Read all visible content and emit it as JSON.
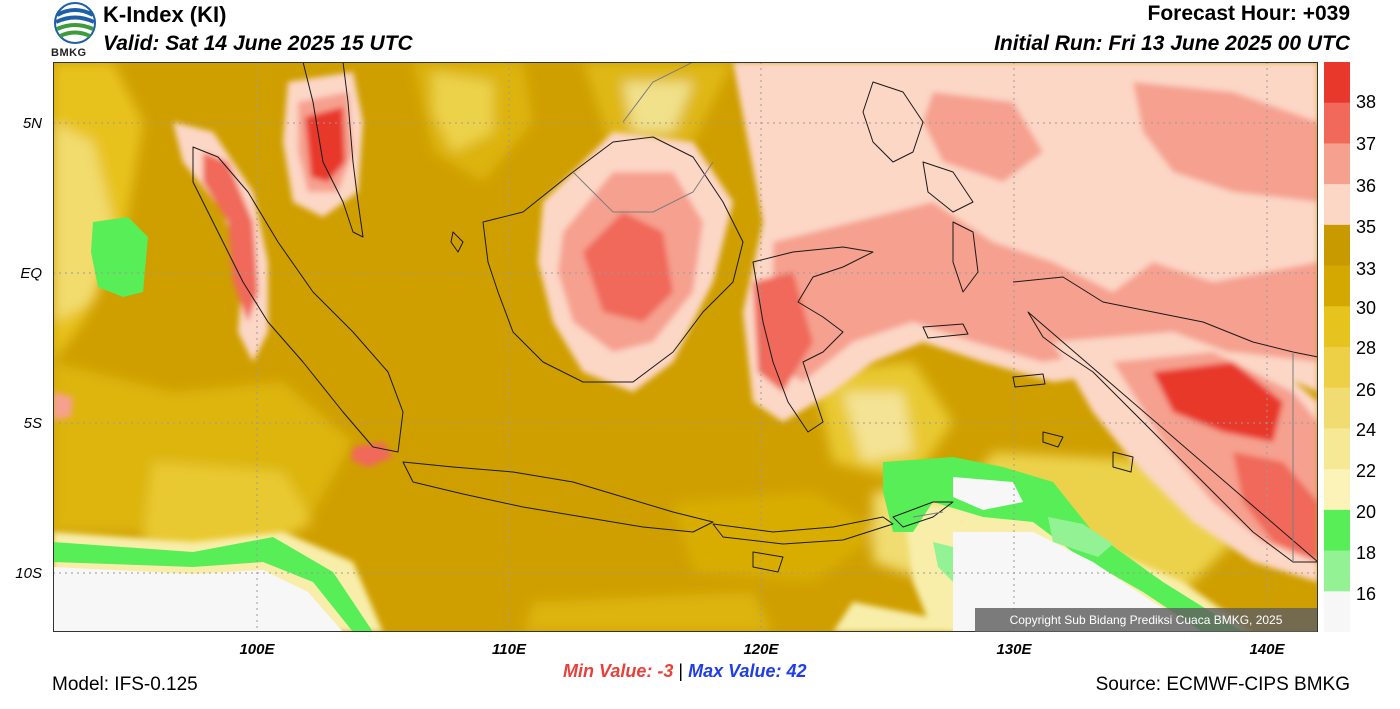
{
  "header": {
    "title": "K-Index (KI)",
    "valid": "Valid: Sat 14 June 2025 15 UTC",
    "forecast_hour": "Forecast Hour: +039",
    "initial_run": "Initial Run: Fri 13 June 2025 00 UTC",
    "logo_text": "BMKG"
  },
  "map": {
    "lat_labels": [
      "5N",
      "EQ",
      "5S",
      "10S"
    ],
    "lon_labels": [
      "100E",
      "110E",
      "120E",
      "130E",
      "140E"
    ],
    "copyright": "Copyright Sub Bidang Prediksi Cuaca BMKG, 2025"
  },
  "colorbar": {
    "labels": [
      "38",
      "37",
      "36",
      "35",
      "33",
      "30",
      "28",
      "26",
      "24",
      "22",
      "20",
      "18",
      "16"
    ],
    "colors": [
      "#e8382b",
      "#f0695a",
      "#f6a08f",
      "#fcd7c6",
      "#c99a00",
      "#d5a800",
      "#e6c31d",
      "#edd045",
      "#f0dc70",
      "#f6e996",
      "#fbf3b8",
      "#58ee58",
      "#93f293",
      "#f7f7f7"
    ]
  },
  "footer": {
    "min_label": "Min Value:",
    "min_value": "-3",
    "separator": "|",
    "max_label": "Max Value:",
    "max_value": "42",
    "model": "Model: IFS-0.125",
    "source": "Source: ECMWF-CIPS BMKG"
  }
}
